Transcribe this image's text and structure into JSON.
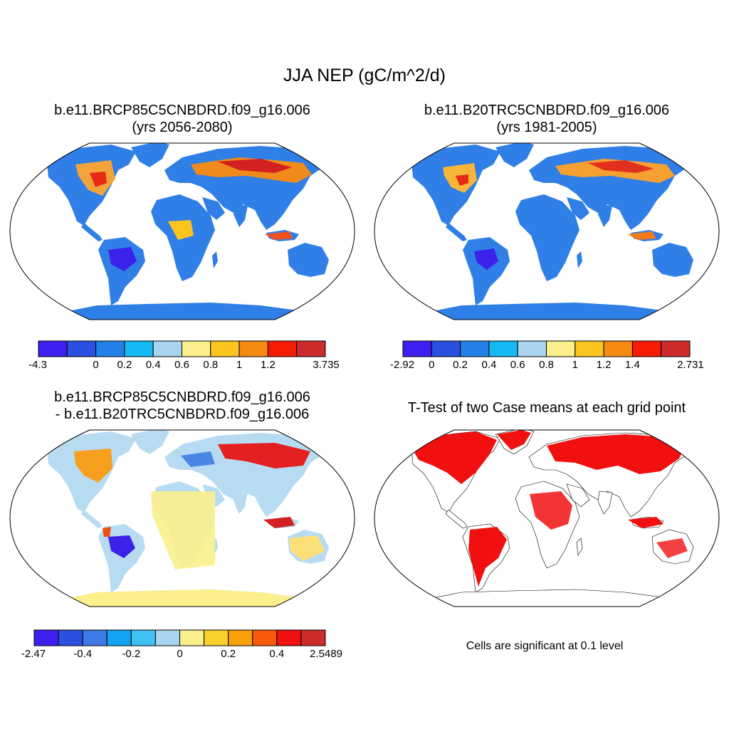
{
  "main_title": "JJA NEP (gC/m^2/d)",
  "panels": [
    {
      "title_line1": "b.e11.BRCP85C5CNBDRD.f09_g16.006",
      "title_line2": "(yrs 2056-2080)"
    },
    {
      "title_line1": "b.e11.B20TRC5CNBDRD.f09_g16.006",
      "title_line2": "(yrs 1981-2005)"
    },
    {
      "title_line1": "b.e11.BRCP85C5CNBDRD.f09_g16.006",
      "title_line2": "- b.e11.B20TRC5CNBDRD.f09_g16.006"
    },
    {
      "title_line1": "T-Test of two Case means at each grid point",
      "title_line2": ""
    }
  ],
  "colorbars": [
    {
      "colors": [
        "#3d1ff0",
        "#2b4fe0",
        "#2281e8",
        "#14b9f3",
        "#a8d4f0",
        "#fbf08c",
        "#fbc41f",
        "#f78a12",
        "#f51c04",
        "#cc2b2b"
      ],
      "labels": [
        "-4.3",
        "0",
        "0.2",
        "0.4",
        "0.6",
        "0.8",
        "1",
        "1.2",
        "3.735"
      ]
    },
    {
      "colors": [
        "#3d1ff0",
        "#2b4fe0",
        "#2281e8",
        "#14b9f3",
        "#a8d4f0",
        "#fbf08c",
        "#fbc41f",
        "#f78a12",
        "#f51c04",
        "#cc2b2b"
      ],
      "labels": [
        "-2.92",
        "0",
        "0.2",
        "0.4",
        "0.6",
        "0.8",
        "1",
        "1.2",
        "1.4",
        "2.731"
      ]
    },
    {
      "colors": [
        "#3d1ff0",
        "#2b4fe0",
        "#3c7ae6",
        "#14a3f2",
        "#3fc0f2",
        "#a8d4f0",
        "#fbf08c",
        "#fbd02c",
        "#f8a10c",
        "#f75a0a",
        "#f01010",
        "#cc2b2b"
      ],
      "labels": [
        "-2.47",
        "-0.4",
        "-0.2",
        "0",
        "0.2",
        "0.4",
        "2.5489"
      ]
    }
  ],
  "significance_note": "Cells are significant at 0.1 level",
  "legend_colors": {
    "ocean": "#ffffff",
    "antarctica_base": "#2281e8",
    "antarctica_diff": "#fbf08c",
    "significant": "#f01010"
  }
}
